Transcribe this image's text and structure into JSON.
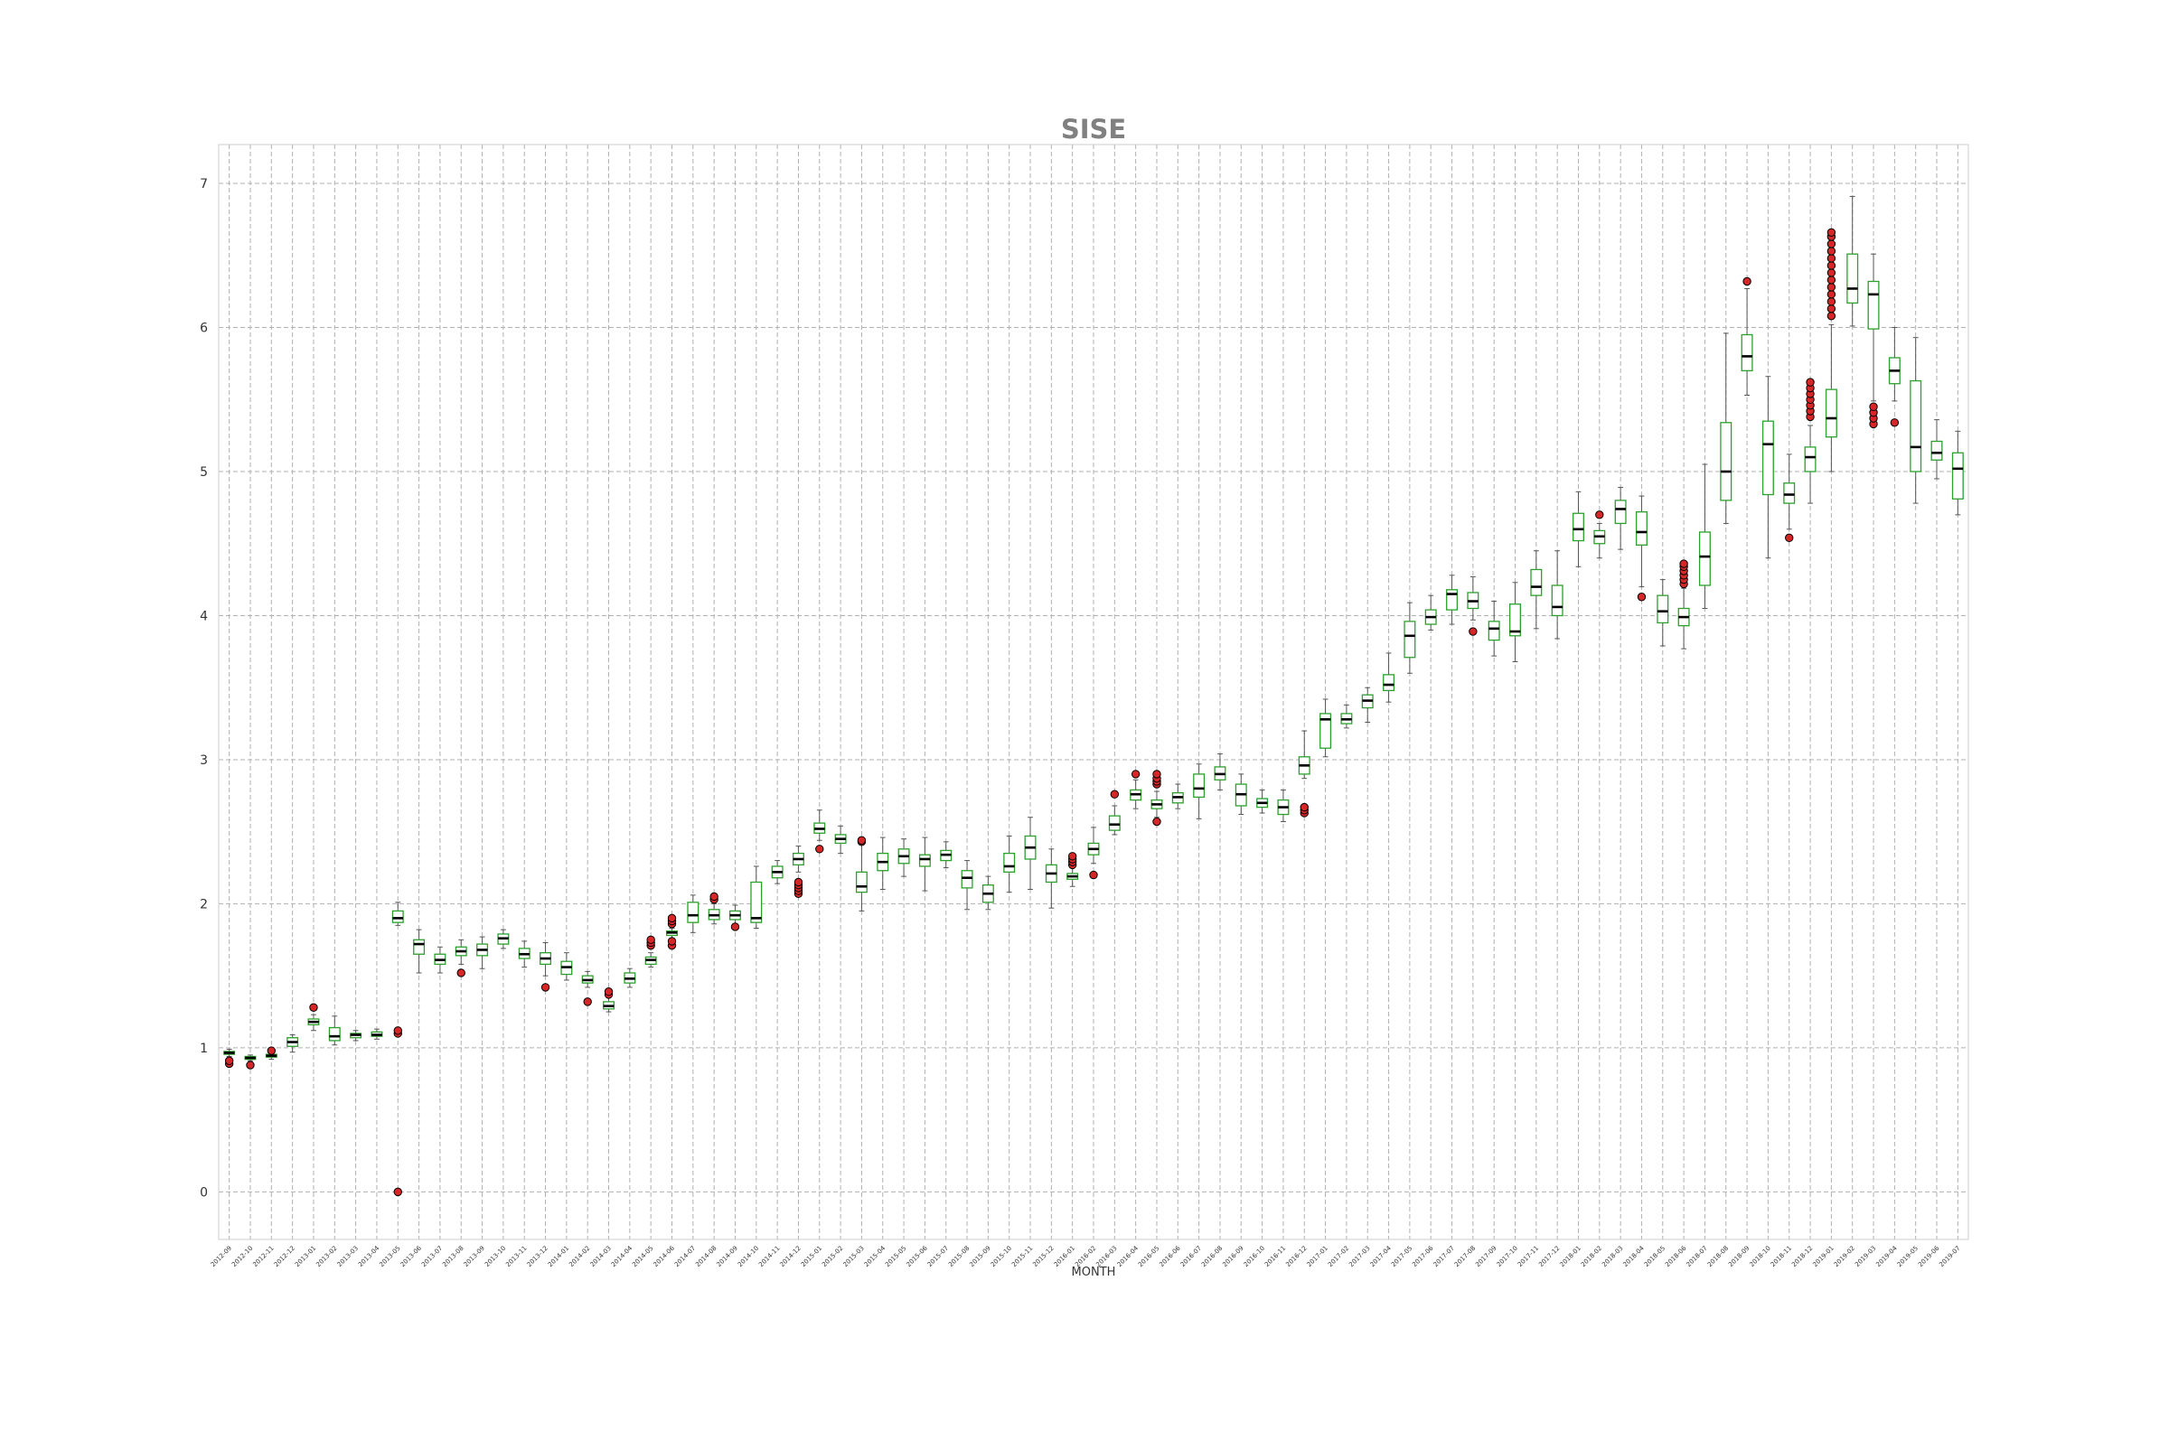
{
  "chart_data": {
    "type": "boxplot",
    "title": "SISE",
    "xlabel": "MONTH",
    "ylabel": "",
    "ylim": [
      -0.33,
      7.27
    ],
    "yticks": [
      0,
      1,
      2,
      3,
      4,
      5,
      6,
      7
    ],
    "grid": true,
    "colors": {
      "box": "#2ca02c",
      "median": "#000000",
      "whisker": "#555555",
      "outlier_fill": "#d62728",
      "grid": "#b0b0b0",
      "title": "#808080",
      "frame": "#cccccc"
    },
    "categories": [
      "2012-09",
      "2012-10",
      "2012-11",
      "2012-12",
      "2013-01",
      "2013-02",
      "2013-03",
      "2013-04",
      "2013-05",
      "2013-06",
      "2013-07",
      "2013-08",
      "2013-09",
      "2013-10",
      "2013-11",
      "2013-12",
      "2014-01",
      "2014-02",
      "2014-03",
      "2014-04",
      "2014-05",
      "2014-06",
      "2014-07",
      "2014-08",
      "2014-09",
      "2014-10",
      "2014-11",
      "2014-12",
      "2015-01",
      "2015-02",
      "2015-03",
      "2015-04",
      "2015-05",
      "2015-06",
      "2015-07",
      "2015-08",
      "2015-09",
      "2015-10",
      "2015-11",
      "2015-12",
      "2016-01",
      "2016-02",
      "2016-03",
      "2016-04",
      "2016-05",
      "2016-06",
      "2016-07",
      "2016-08",
      "2016-09",
      "2016-10",
      "2016-11",
      "2016-12",
      "2017-01",
      "2017-02",
      "2017-03",
      "2017-04",
      "2017-05",
      "2017-06",
      "2017-07",
      "2017-08",
      "2017-09",
      "2017-10",
      "2017-11",
      "2017-12",
      "2018-01",
      "2018-02",
      "2018-03",
      "2018-04",
      "2018-05",
      "2018-06",
      "2018-07",
      "2018-08",
      "2018-09",
      "2018-10",
      "2018-11",
      "2018-12",
      "2019-01",
      "2019-02",
      "2019-03",
      "2019-04",
      "2019-05",
      "2019-06",
      "2019-07"
    ],
    "boxes": [
      {
        "whislo": 0.94,
        "q1": 0.955,
        "med": 0.965,
        "q3": 0.975,
        "whishi": 0.99,
        "fliers": [
          0.89,
          0.91
        ]
      },
      {
        "whislo": 0.91,
        "q1": 0.92,
        "med": 0.93,
        "q3": 0.94,
        "whishi": 0.95,
        "fliers": [
          0.88
        ]
      },
      {
        "whislo": 0.92,
        "q1": 0.935,
        "med": 0.945,
        "q3": 0.955,
        "whishi": 0.97,
        "fliers": [
          0.98
        ]
      },
      {
        "whislo": 0.97,
        "q1": 1.01,
        "med": 1.04,
        "q3": 1.07,
        "whishi": 1.09,
        "fliers": []
      },
      {
        "whislo": 1.12,
        "q1": 1.16,
        "med": 1.18,
        "q3": 1.2,
        "whishi": 1.23,
        "fliers": [
          1.28
        ]
      },
      {
        "whislo": 1.02,
        "q1": 1.05,
        "med": 1.08,
        "q3": 1.14,
        "whishi": 1.22,
        "fliers": []
      },
      {
        "whislo": 1.05,
        "q1": 1.07,
        "med": 1.09,
        "q3": 1.1,
        "whishi": 1.12,
        "fliers": []
      },
      {
        "whislo": 1.06,
        "q1": 1.08,
        "med": 1.09,
        "q3": 1.11,
        "whishi": 1.13,
        "fliers": []
      },
      {
        "whislo": 1.85,
        "q1": 1.87,
        "med": 1.9,
        "q3": 1.95,
        "whishi": 2.01,
        "fliers": [
          1.1,
          1.12,
          0.0
        ]
      },
      {
        "whislo": 1.52,
        "q1": 1.65,
        "med": 1.72,
        "q3": 1.75,
        "whishi": 1.82,
        "fliers": []
      },
      {
        "whislo": 1.52,
        "q1": 1.58,
        "med": 1.61,
        "q3": 1.65,
        "whishi": 1.7,
        "fliers": []
      },
      {
        "whislo": 1.58,
        "q1": 1.64,
        "med": 1.67,
        "q3": 1.7,
        "whishi": 1.75,
        "fliers": [
          1.52
        ]
      },
      {
        "whislo": 1.55,
        "q1": 1.64,
        "med": 1.68,
        "q3": 1.72,
        "whishi": 1.77,
        "fliers": []
      },
      {
        "whislo": 1.69,
        "q1": 1.72,
        "med": 1.76,
        "q3": 1.79,
        "whishi": 1.82,
        "fliers": []
      },
      {
        "whislo": 1.56,
        "q1": 1.62,
        "med": 1.65,
        "q3": 1.69,
        "whishi": 1.74,
        "fliers": []
      },
      {
        "whislo": 1.5,
        "q1": 1.58,
        "med": 1.62,
        "q3": 1.66,
        "whishi": 1.73,
        "fliers": [
          1.42
        ]
      },
      {
        "whislo": 1.47,
        "q1": 1.51,
        "med": 1.56,
        "q3": 1.6,
        "whishi": 1.66,
        "fliers": []
      },
      {
        "whislo": 1.42,
        "q1": 1.45,
        "med": 1.47,
        "q3": 1.5,
        "whishi": 1.53,
        "fliers": [
          1.32
        ]
      },
      {
        "whislo": 1.25,
        "q1": 1.27,
        "med": 1.29,
        "q3": 1.32,
        "whishi": 1.36,
        "fliers": [
          1.37,
          1.39
        ]
      },
      {
        "whislo": 1.42,
        "q1": 1.45,
        "med": 1.48,
        "q3": 1.52,
        "whishi": 1.55,
        "fliers": []
      },
      {
        "whislo": 1.56,
        "q1": 1.58,
        "med": 1.61,
        "q3": 1.63,
        "whishi": 1.66,
        "fliers": [
          1.71,
          1.73,
          1.75
        ]
      },
      {
        "whislo": 1.76,
        "q1": 1.78,
        "med": 1.8,
        "q3": 1.81,
        "whishi": 1.83,
        "fliers": [
          1.71,
          1.74,
          1.86,
          1.88,
          1.9
        ]
      },
      {
        "whislo": 1.8,
        "q1": 1.87,
        "med": 1.92,
        "q3": 2.01,
        "whishi": 2.06,
        "fliers": []
      },
      {
        "whislo": 1.86,
        "q1": 1.89,
        "med": 1.92,
        "q3": 1.96,
        "whishi": 2.0,
        "fliers": [
          2.03,
          2.05
        ]
      },
      {
        "whislo": 1.86,
        "q1": 1.89,
        "med": 1.92,
        "q3": 1.95,
        "whishi": 1.99,
        "fliers": [
          1.84
        ]
      },
      {
        "whislo": 1.83,
        "q1": 1.87,
        "med": 1.9,
        "q3": 2.15,
        "whishi": 2.26,
        "fliers": []
      },
      {
        "whislo": 2.14,
        "q1": 2.18,
        "med": 2.22,
        "q3": 2.26,
        "whishi": 2.3,
        "fliers": []
      },
      {
        "whislo": 2.22,
        "q1": 2.27,
        "med": 2.31,
        "q3": 2.35,
        "whishi": 2.4,
        "fliers": [
          2.07,
          2.09,
          2.11,
          2.13,
          2.15
        ]
      },
      {
        "whislo": 2.44,
        "q1": 2.49,
        "med": 2.52,
        "q3": 2.56,
        "whishi": 2.65,
        "fliers": [
          2.38
        ]
      },
      {
        "whislo": 2.35,
        "q1": 2.42,
        "med": 2.45,
        "q3": 2.48,
        "whishi": 2.54,
        "fliers": []
      },
      {
        "whislo": 1.95,
        "q1": 2.08,
        "med": 2.12,
        "q3": 2.22,
        "whishi": 2.42,
        "fliers": [
          2.43,
          2.44
        ]
      },
      {
        "whislo": 2.1,
        "q1": 2.23,
        "med": 2.29,
        "q3": 2.35,
        "whishi": 2.46,
        "fliers": []
      },
      {
        "whislo": 2.19,
        "q1": 2.28,
        "med": 2.33,
        "q3": 2.38,
        "whishi": 2.45,
        "fliers": []
      },
      {
        "whislo": 2.09,
        "q1": 2.26,
        "med": 2.31,
        "q3": 2.34,
        "whishi": 2.46,
        "fliers": []
      },
      {
        "whislo": 2.25,
        "q1": 2.3,
        "med": 2.34,
        "q3": 2.37,
        "whishi": 2.43,
        "fliers": []
      },
      {
        "whislo": 1.96,
        "q1": 2.11,
        "med": 2.18,
        "q3": 2.23,
        "whishi": 2.3,
        "fliers": []
      },
      {
        "whislo": 1.96,
        "q1": 2.01,
        "med": 2.07,
        "q3": 2.13,
        "whishi": 2.19,
        "fliers": []
      },
      {
        "whislo": 2.08,
        "q1": 2.22,
        "med": 2.26,
        "q3": 2.35,
        "whishi": 2.47,
        "fliers": []
      },
      {
        "whislo": 2.1,
        "q1": 2.31,
        "med": 2.39,
        "q3": 2.47,
        "whishi": 2.6,
        "fliers": []
      },
      {
        "whislo": 1.97,
        "q1": 2.15,
        "med": 2.21,
        "q3": 2.27,
        "whishi": 2.38,
        "fliers": []
      },
      {
        "whislo": 2.12,
        "q1": 2.17,
        "med": 2.19,
        "q3": 2.21,
        "whishi": 2.26,
        "fliers": [
          2.27,
          2.29,
          2.31,
          2.33
        ]
      },
      {
        "whislo": 2.28,
        "q1": 2.34,
        "med": 2.38,
        "q3": 2.42,
        "whishi": 2.53,
        "fliers": [
          2.2
        ]
      },
      {
        "whislo": 2.48,
        "q1": 2.51,
        "med": 2.55,
        "q3": 2.61,
        "whishi": 2.68,
        "fliers": [
          2.76
        ]
      },
      {
        "whislo": 2.66,
        "q1": 2.72,
        "med": 2.76,
        "q3": 2.79,
        "whishi": 2.86,
        "fliers": [
          2.9
        ]
      },
      {
        "whislo": 2.6,
        "q1": 2.66,
        "med": 2.69,
        "q3": 2.72,
        "whishi": 2.78,
        "fliers": [
          2.57,
          2.83,
          2.85,
          2.87,
          2.9
        ]
      },
      {
        "whislo": 2.66,
        "q1": 2.7,
        "med": 2.74,
        "q3": 2.77,
        "whishi": 2.83,
        "fliers": []
      },
      {
        "whislo": 2.59,
        "q1": 2.74,
        "med": 2.8,
        "q3": 2.9,
        "whishi": 2.97,
        "fliers": []
      },
      {
        "whislo": 2.79,
        "q1": 2.86,
        "med": 2.9,
        "q3": 2.95,
        "whishi": 3.04,
        "fliers": []
      },
      {
        "whislo": 2.62,
        "q1": 2.68,
        "med": 2.76,
        "q3": 2.83,
        "whishi": 2.9,
        "fliers": []
      },
      {
        "whislo": 2.63,
        "q1": 2.67,
        "med": 2.7,
        "q3": 2.73,
        "whishi": 2.79,
        "fliers": []
      },
      {
        "whislo": 2.57,
        "q1": 2.62,
        "med": 2.67,
        "q3": 2.72,
        "whishi": 2.79,
        "fliers": []
      },
      {
        "whislo": 2.87,
        "q1": 2.9,
        "med": 2.96,
        "q3": 3.02,
        "whishi": 3.2,
        "fliers": [
          2.63,
          2.65,
          2.67
        ]
      },
      {
        "whislo": 3.02,
        "q1": 3.08,
        "med": 3.28,
        "q3": 3.32,
        "whishi": 3.42,
        "fliers": []
      },
      {
        "whislo": 3.22,
        "q1": 3.25,
        "med": 3.28,
        "q3": 3.32,
        "whishi": 3.38,
        "fliers": []
      },
      {
        "whislo": 3.26,
        "q1": 3.36,
        "med": 3.41,
        "q3": 3.45,
        "whishi": 3.5,
        "fliers": []
      },
      {
        "whislo": 3.4,
        "q1": 3.48,
        "med": 3.52,
        "q3": 3.59,
        "whishi": 3.74,
        "fliers": []
      },
      {
        "whislo": 3.6,
        "q1": 3.71,
        "med": 3.86,
        "q3": 3.96,
        "whishi": 4.09,
        "fliers": []
      },
      {
        "whislo": 3.9,
        "q1": 3.94,
        "med": 3.99,
        "q3": 4.04,
        "whishi": 4.14,
        "fliers": []
      },
      {
        "whislo": 3.94,
        "q1": 4.04,
        "med": 4.15,
        "q3": 4.18,
        "whishi": 4.28,
        "fliers": []
      },
      {
        "whislo": 3.97,
        "q1": 4.05,
        "med": 4.1,
        "q3": 4.16,
        "whishi": 4.27,
        "fliers": [
          3.89
        ]
      },
      {
        "whislo": 3.72,
        "q1": 3.83,
        "med": 3.91,
        "q3": 3.96,
        "whishi": 4.1,
        "fliers": []
      },
      {
        "whislo": 3.68,
        "q1": 3.86,
        "med": 3.89,
        "q3": 4.08,
        "whishi": 4.23,
        "fliers": []
      },
      {
        "whislo": 3.91,
        "q1": 4.14,
        "med": 4.2,
        "q3": 4.32,
        "whishi": 4.45,
        "fliers": []
      },
      {
        "whislo": 3.84,
        "q1": 4.0,
        "med": 4.06,
        "q3": 4.21,
        "whishi": 4.45,
        "fliers": []
      },
      {
        "whislo": 4.34,
        "q1": 4.52,
        "med": 4.6,
        "q3": 4.71,
        "whishi": 4.86,
        "fliers": []
      },
      {
        "whislo": 4.4,
        "q1": 4.5,
        "med": 4.55,
        "q3": 4.59,
        "whishi": 4.64,
        "fliers": [
          4.7
        ]
      },
      {
        "whislo": 4.46,
        "q1": 4.64,
        "med": 4.74,
        "q3": 4.8,
        "whishi": 4.89,
        "fliers": []
      },
      {
        "whislo": 4.2,
        "q1": 4.49,
        "med": 4.58,
        "q3": 4.72,
        "whishi": 4.83,
        "fliers": [
          4.13
        ]
      },
      {
        "whislo": 3.79,
        "q1": 3.95,
        "med": 4.03,
        "q3": 4.14,
        "whishi": 4.25,
        "fliers": []
      },
      {
        "whislo": 3.77,
        "q1": 3.93,
        "med": 3.99,
        "q3": 4.05,
        "whishi": 4.19,
        "fliers": [
          4.22,
          4.25,
          4.28,
          4.31,
          4.34,
          4.36
        ]
      },
      {
        "whislo": 4.05,
        "q1": 4.21,
        "med": 4.41,
        "q3": 4.58,
        "whishi": 5.05,
        "fliers": []
      },
      {
        "whislo": 4.64,
        "q1": 4.8,
        "med": 5.0,
        "q3": 5.34,
        "whishi": 5.96,
        "fliers": []
      },
      {
        "whislo": 5.53,
        "q1": 5.7,
        "med": 5.8,
        "q3": 5.95,
        "whishi": 6.27,
        "fliers": [
          6.32
        ]
      },
      {
        "whislo": 4.4,
        "q1": 4.84,
        "med": 5.19,
        "q3": 5.35,
        "whishi": 5.66,
        "fliers": []
      },
      {
        "whislo": 4.6,
        "q1": 4.78,
        "med": 4.84,
        "q3": 4.92,
        "whishi": 5.12,
        "fliers": [
          4.54
        ]
      },
      {
        "whislo": 4.78,
        "q1": 5.0,
        "med": 5.1,
        "q3": 5.17,
        "whishi": 5.32,
        "fliers": [
          5.38,
          5.42,
          5.46,
          5.5,
          5.54,
          5.58,
          5.62
        ]
      },
      {
        "whislo": 5.0,
        "q1": 5.24,
        "med": 5.37,
        "q3": 5.57,
        "whishi": 6.02,
        "fliers": [
          6.08,
          6.13,
          6.18,
          6.23,
          6.28,
          6.33,
          6.38,
          6.43,
          6.48,
          6.53,
          6.58,
          6.63,
          6.66
        ]
      },
      {
        "whislo": 6.01,
        "q1": 6.17,
        "med": 6.27,
        "q3": 6.51,
        "whishi": 6.91,
        "fliers": []
      },
      {
        "whislo": 5.49,
        "q1": 5.99,
        "med": 6.23,
        "q3": 6.32,
        "whishi": 6.51,
        "fliers": [
          5.33,
          5.37,
          5.41,
          5.45
        ]
      },
      {
        "whislo": 5.49,
        "q1": 5.61,
        "med": 5.7,
        "q3": 5.79,
        "whishi": 6.0,
        "fliers": [
          5.34
        ]
      },
      {
        "whislo": 4.78,
        "q1": 5.0,
        "med": 5.17,
        "q3": 5.63,
        "whishi": 5.93,
        "fliers": []
      },
      {
        "whislo": 4.95,
        "q1": 5.08,
        "med": 5.13,
        "q3": 5.21,
        "whishi": 5.36,
        "fliers": []
      },
      {
        "whislo": 4.7,
        "q1": 4.81,
        "med": 5.02,
        "q3": 5.13,
        "whishi": 5.28,
        "fliers": []
      }
    ]
  }
}
